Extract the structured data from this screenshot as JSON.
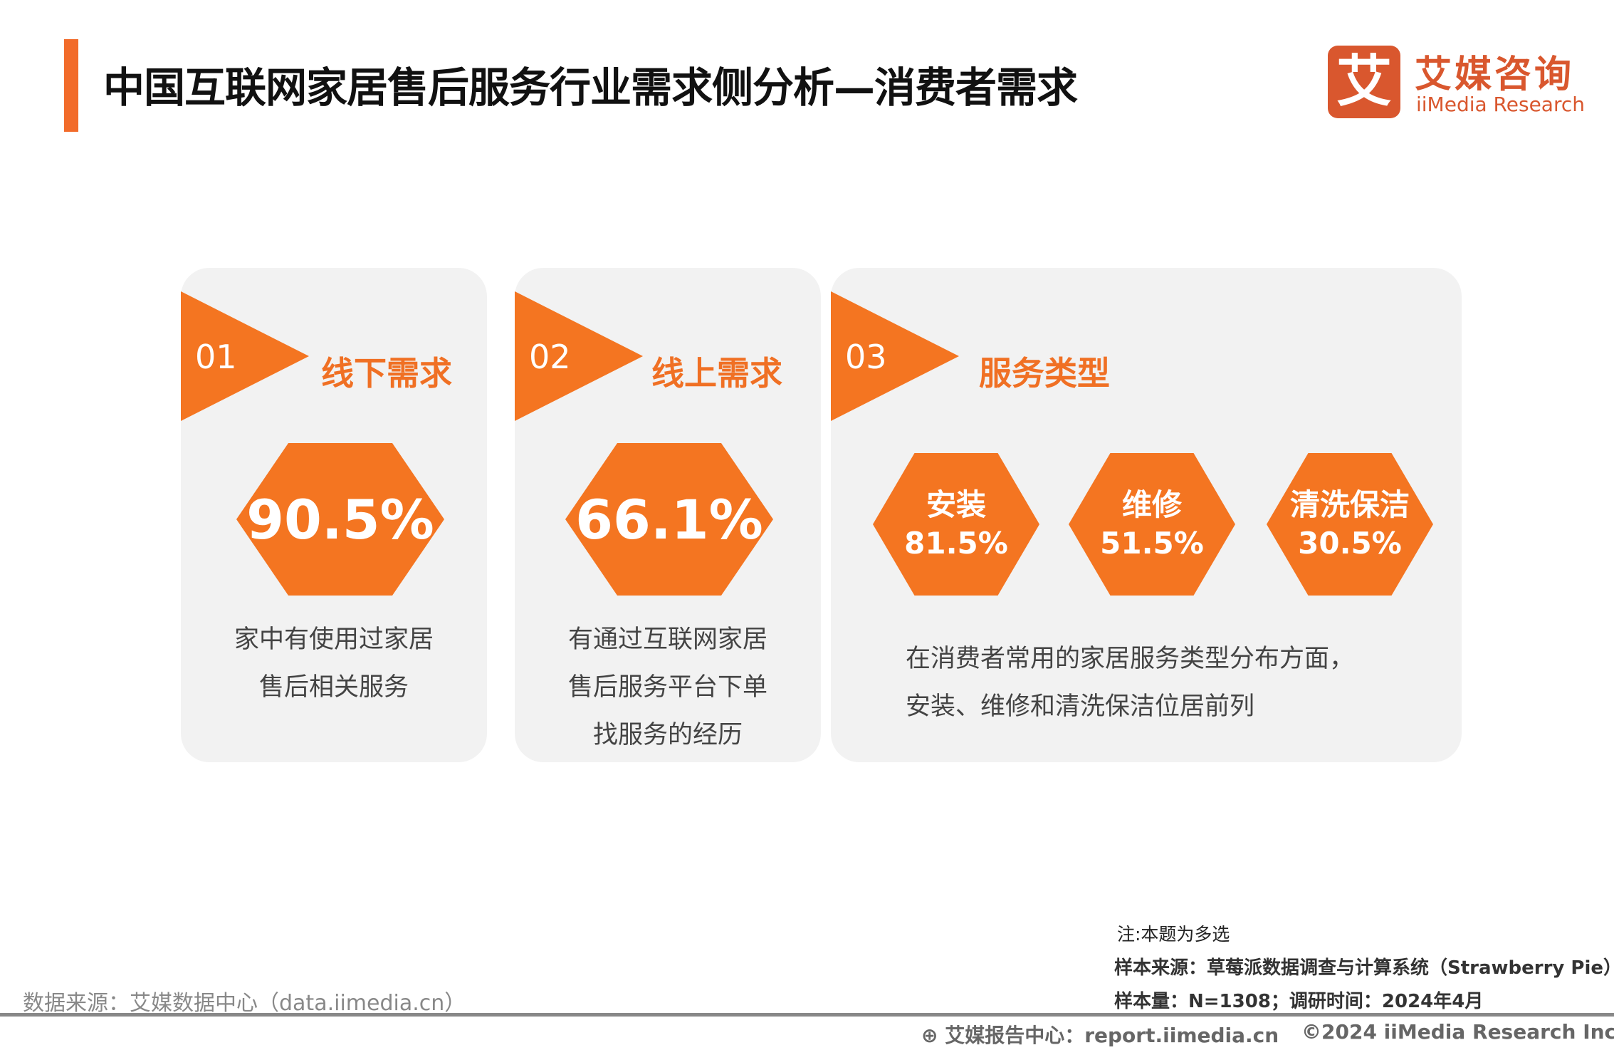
{
  "header": {
    "title": "中国互联网家居售后服务行业需求侧分析—消费者需求"
  },
  "logo": {
    "mark": "艾",
    "cn": "艾媒咨询",
    "en": "iiMedia Research"
  },
  "cards": [
    {
      "num": "01",
      "label": "线下需求",
      "value": "90.5%",
      "desc": [
        "家中有使用过家居",
        "售后相关服务"
      ]
    },
    {
      "num": "02",
      "label": "线上需求",
      "value": "66.1%",
      "desc": [
        "有通过互联网家居",
        "售后服务平台下单",
        "找服务的经历"
      ]
    },
    {
      "num": "03",
      "label": "服务类型",
      "items": [
        {
          "name": "安装",
          "value": "81.5%"
        },
        {
          "name": "维修",
          "value": "51.5%"
        },
        {
          "name": "清洗保洁",
          "value": "30.5%"
        }
      ],
      "desc": [
        "在消费者常用的家居服务类型分布方面，",
        "安装、维修和清洗保洁位居前列"
      ]
    }
  ],
  "footer": {
    "note": "注:本题为多选",
    "sample_source": "样本来源：草莓派数据调查与计算系统（Strawberry Pie）",
    "sample_size": "样本量：N=1308；调研时间：2024年4月",
    "data_source": "数据来源：艾媒数据中心（data.iimedia.cn）",
    "report_center": "艾媒报告中心：report.iimedia.cn",
    "copyright": "©2024  iiMedia Research  Inc"
  },
  "colors": {
    "accent": "#f47521",
    "card_bg": "#f2f2f2",
    "brand": "#d9572e"
  }
}
